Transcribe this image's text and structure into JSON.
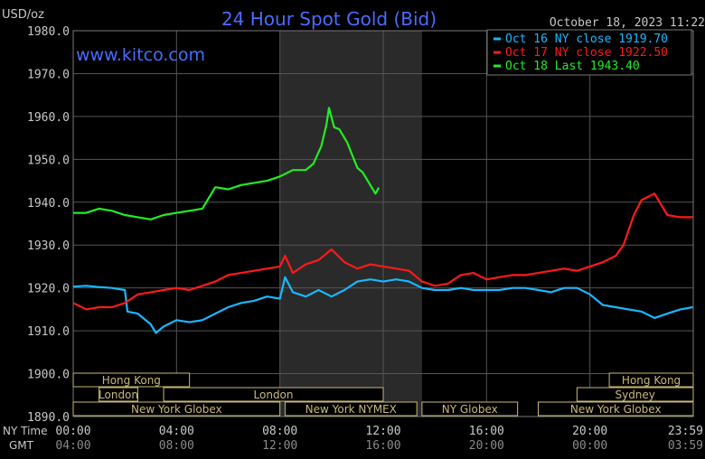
{
  "header": {
    "units": "USD/oz",
    "title": "24 Hour Spot Gold (Bid)",
    "timestamp": "October 18, 2023 11:22",
    "watermark": "www.kitco.com"
  },
  "colors": {
    "background": "#000000",
    "plot_background": "#000000",
    "shaded_region": "#2a2a2a",
    "grid": "#555555",
    "title": "#4a6cff",
    "text": "#c8c8c8",
    "session_box": "#c8b878",
    "series_oct16": "#1ab8ff",
    "series_oct17": "#ff1a1a",
    "series_oct18": "#22ee22"
  },
  "axis_labels": {
    "ny_time": "NY Time",
    "gmt": "GMT"
  },
  "chart_data": {
    "type": "line",
    "title": "24 Hour Spot Gold (Bid)",
    "ylabel": "USD/oz",
    "ylim": [
      1890,
      1980
    ],
    "xlim": [
      0,
      24
    ],
    "y_ticks": [
      "1890.0",
      "1900.0",
      "1910.0",
      "1920.0",
      "1930.0",
      "1940.0",
      "1950.0",
      "1960.0",
      "1970.0",
      "1980.0"
    ],
    "x_ticks_ny": [
      "00:00",
      "04:00",
      "08:00",
      "12:00",
      "16:00",
      "20:00",
      "23:59"
    ],
    "x_ticks_gmt": [
      "04:00",
      "08:00",
      "12:00",
      "16:00",
      "20:00",
      "00:00",
      "03:59"
    ],
    "shaded_range": [
      8,
      13.5
    ],
    "grid": true,
    "legend": "top-right",
    "series": [
      {
        "name": "Oct 16 NY close 1919.70",
        "x": [
          0,
          0.5,
          1,
          1.5,
          2,
          2.1,
          2.5,
          3,
          3.2,
          3.5,
          4,
          4.5,
          5,
          5.5,
          6,
          6.5,
          7,
          7.5,
          8,
          8.2,
          8.5,
          9,
          9.5,
          10,
          10.5,
          11,
          11.5,
          12,
          12.5,
          13,
          13.5,
          14,
          14.5,
          15,
          15.5,
          16,
          16.5,
          17,
          17.5,
          18,
          18.5,
          19,
          19.5,
          20,
          20.5,
          21,
          21.5,
          22,
          22.5,
          23,
          23.5,
          23.98
        ],
        "values": [
          1920.3,
          1920.5,
          1920.2,
          1920.0,
          1919.5,
          1914.5,
          1914.0,
          1911.5,
          1909.5,
          1911.0,
          1912.5,
          1912.0,
          1912.5,
          1914.0,
          1915.5,
          1916.5,
          1917.0,
          1918.0,
          1917.5,
          1922.5,
          1919.0,
          1918.0,
          1919.5,
          1918.0,
          1919.5,
          1921.5,
          1922.0,
          1921.5,
          1922.0,
          1921.5,
          1920.0,
          1919.5,
          1919.5,
          1920.0,
          1919.5,
          1919.5,
          1919.5,
          1920.0,
          1920.0,
          1919.5,
          1919.0,
          1920.0,
          1920.0,
          1918.5,
          1916.0,
          1915.5,
          1915.0,
          1914.5,
          1913.0,
          1914.0,
          1915.0,
          1915.5
        ]
      },
      {
        "name": "Oct 17 NY close 1922.50",
        "x": [
          0,
          0.5,
          1,
          1.5,
          2,
          2.5,
          3,
          3.5,
          4,
          4.5,
          5,
          5.5,
          6,
          6.5,
          7,
          7.5,
          8,
          8.2,
          8.5,
          9,
          9.5,
          10,
          10.5,
          11,
          11.5,
          12,
          12.5,
          13,
          13.5,
          14,
          14.5,
          15,
          15.5,
          16,
          16.5,
          17,
          17.5,
          18,
          18.5,
          19,
          19.5,
          20,
          20.5,
          21,
          21.3,
          21.7,
          22,
          22.5,
          22.8,
          23,
          23.5,
          23.98
        ],
        "values": [
          1916.5,
          1915.0,
          1915.5,
          1915.5,
          1916.5,
          1918.5,
          1919.0,
          1919.5,
          1920.0,
          1919.5,
          1920.5,
          1921.5,
          1923.0,
          1923.5,
          1924.0,
          1924.5,
          1925.0,
          1927.5,
          1923.5,
          1925.5,
          1926.5,
          1929.0,
          1926.0,
          1924.5,
          1925.5,
          1925.0,
          1924.5,
          1924.0,
          1921.5,
          1920.5,
          1921.0,
          1923.0,
          1923.5,
          1922.0,
          1922.5,
          1923.0,
          1923.0,
          1923.5,
          1924.0,
          1924.5,
          1924.0,
          1925.0,
          1926.0,
          1927.5,
          1930.0,
          1937.0,
          1940.5,
          1942.0,
          1939.0,
          1937.0,
          1936.5,
          1936.5
        ]
      },
      {
        "name": "Oct 18 Last 1943.40",
        "x": [
          0,
          0.5,
          1,
          1.5,
          2,
          2.5,
          3,
          3.5,
          4,
          4.5,
          5,
          5.5,
          6,
          6.5,
          7,
          7.5,
          8,
          8.5,
          9,
          9.3,
          9.6,
          9.8,
          9.9,
          10.1,
          10.3,
          10.6,
          11,
          11.2,
          11.5,
          11.7,
          11.83
        ],
        "values": [
          1937.5,
          1937.5,
          1938.5,
          1938.0,
          1937.0,
          1936.5,
          1936.0,
          1937.0,
          1937.5,
          1938.0,
          1938.5,
          1943.5,
          1943.0,
          1944.0,
          1944.5,
          1945.0,
          1946.0,
          1947.5,
          1947.5,
          1949.0,
          1953.0,
          1958.0,
          1962.0,
          1957.5,
          1957.0,
          1954.0,
          1948.0,
          1947.0,
          1944.0,
          1942.0,
          1943.4
        ]
      }
    ]
  },
  "session_bars": [
    {
      "label": "Hong Kong",
      "row": 0,
      "start": 0,
      "end": 4.5
    },
    {
      "label": "Hong Kong",
      "row": 0,
      "start": 20.75,
      "end": 24
    },
    {
      "label": "London",
      "row": 1,
      "start": 1,
      "end": 2.5
    },
    {
      "label": "London",
      "row": 1,
      "start": 3.5,
      "end": 12
    },
    {
      "label": "Sydney",
      "row": 1,
      "start": 19.5,
      "end": 24
    },
    {
      "label": "New York Globex",
      "row": 2,
      "start": 0,
      "end": 8
    },
    {
      "label": "New York NYMEX",
      "row": 2,
      "start": 8.2,
      "end": 13.3
    },
    {
      "label": "NY Globex",
      "row": 2,
      "start": 13.5,
      "end": 17.2
    },
    {
      "label": "New York Globex",
      "row": 2,
      "start": 18,
      "end": 24
    }
  ]
}
